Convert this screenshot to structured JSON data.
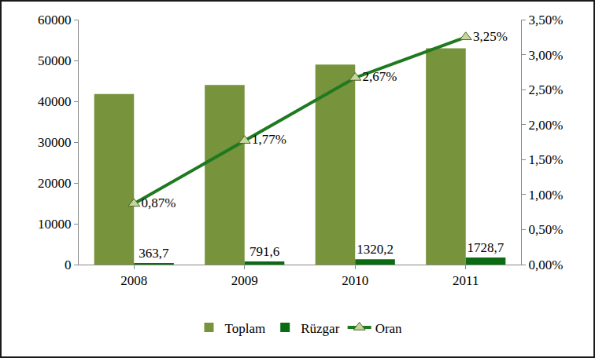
{
  "chart_data": {
    "type": "bar",
    "categories": [
      "2008",
      "2009",
      "2010",
      "2011"
    ],
    "series": [
      {
        "name": "Toplam",
        "type": "bar",
        "color": "#77933c",
        "values": [
          41800,
          44000,
          49000,
          53000
        ]
      },
      {
        "name": "Rüzgar",
        "type": "bar",
        "color": "#0a6b12",
        "values": [
          363.7,
          791.6,
          1320.2,
          1728.7
        ],
        "value_labels": [
          "363,7",
          "791,6",
          "1320,2",
          "1728,7"
        ],
        "data_labels": true
      },
      {
        "name": "Oran",
        "type": "line",
        "axis": "y2",
        "color": "#1f7a1f",
        "marker": "triangle-up",
        "line_style": "solid",
        "values": [
          0.87,
          1.77,
          2.67,
          3.25
        ],
        "value_labels": [
          "0,87%",
          "1,77%",
          "2,67%",
          "3,25%"
        ],
        "data_labels": true
      }
    ],
    "ylim": [
      0,
      60000
    ],
    "yticks": [
      0,
      10000,
      20000,
      30000,
      40000,
      50000,
      60000
    ],
    "y2lim": [
      0,
      3.5
    ],
    "y2ticks": [
      {
        "value": 0,
        "label": "0,00%"
      },
      {
        "value": 0.5,
        "label": "0,50%"
      },
      {
        "value": 1,
        "label": "1,00%"
      },
      {
        "value": 1.5,
        "label": "1,50%"
      },
      {
        "value": 2,
        "label": "2,00%"
      },
      {
        "value": 2.5,
        "label": "2,50%"
      },
      {
        "value": 3,
        "label": "3,00%"
      },
      {
        "value": 3.5,
        "label": "3,50%"
      }
    ],
    "grid": false,
    "legend": "bottom"
  }
}
